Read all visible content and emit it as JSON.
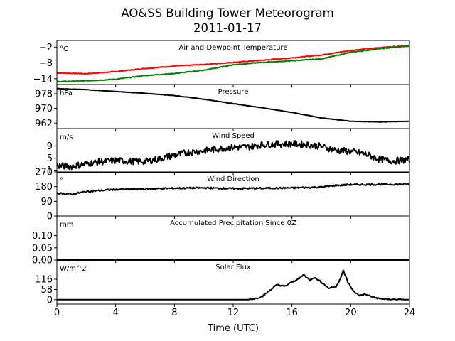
{
  "figure": {
    "title": "AO&SS Building Tower Meteorogram",
    "subtitle": "2011-01-17",
    "xlabel": "Time (UTC)"
  },
  "chart_data": {
    "type": "line",
    "x_range": [
      0,
      24
    ],
    "x_ticks": [
      0,
      4,
      8,
      12,
      16,
      20,
      24
    ],
    "x_tick_labels": [
      "0",
      "4",
      "8",
      "12",
      "16",
      "20",
      "24"
    ],
    "grid": false,
    "panels": [
      {
        "key": "temp",
        "title": "Air and Dewpoint Temperature",
        "unit": "°C",
        "ylim": [
          -16.2,
          0.5
        ],
        "y_ticks": [
          -2,
          -8,
          -14
        ],
        "y_tick_labels": [
          "−2",
          "−8",
          "−14"
        ],
        "series": [
          {
            "color": "#ff0000",
            "noise": 0.15,
            "points": [
              [
                0,
                -11.8
              ],
              [
                2,
                -12.1
              ],
              [
                4,
                -11.3
              ],
              [
                6,
                -10.1
              ],
              [
                8,
                -9.2
              ],
              [
                10,
                -8.6
              ],
              [
                12,
                -7.8
              ],
              [
                14,
                -7.0
              ],
              [
                16,
                -6.1
              ],
              [
                18,
                -5.0
              ],
              [
                20,
                -3.3
              ],
              [
                22,
                -2.2
              ],
              [
                24,
                -1.4
              ]
            ]
          },
          {
            "color": "#008000",
            "noise": 0.15,
            "points": [
              [
                0,
                -15.1
              ],
              [
                2,
                -14.8
              ],
              [
                4,
                -14.2
              ],
              [
                6,
                -12.8
              ],
              [
                8,
                -12.0
              ],
              [
                10,
                -10.8
              ],
              [
                12,
                -8.7
              ],
              [
                14,
                -7.8
              ],
              [
                16,
                -7.2
              ],
              [
                18,
                -6.5
              ],
              [
                20,
                -4.0
              ],
              [
                22,
                -2.6
              ],
              [
                24,
                -1.6
              ]
            ]
          }
        ]
      },
      {
        "key": "pressure",
        "title": "Pressure",
        "unit": "hPa",
        "ylim": [
          959,
          983
        ],
        "y_ticks": [
          978,
          970,
          962
        ],
        "y_tick_labels": [
          "978",
          "970",
          "962"
        ],
        "series": [
          {
            "color": "#000000",
            "noise": 0.1,
            "points": [
              [
                0,
                980.8
              ],
              [
                2,
                980.2
              ],
              [
                4,
                979.2
              ],
              [
                6,
                978.2
              ],
              [
                8,
                977.0
              ],
              [
                10,
                975.0
              ],
              [
                11,
                973.8
              ],
              [
                12,
                972.6
              ],
              [
                14,
                970.3
              ],
              [
                16,
                967.8
              ],
              [
                18,
                964.8
              ],
              [
                20,
                963.0
              ],
              [
                22,
                962.6
              ],
              [
                24,
                963.0
              ]
            ]
          }
        ]
      },
      {
        "key": "wind_speed",
        "title": "Wind Speed",
        "unit": "m/s",
        "ylim": [
          0.2,
          14.8
        ],
        "y_ticks": [
          9,
          5,
          1
        ],
        "y_tick_labels": [
          "9",
          "5",
          "1"
        ],
        "series": [
          {
            "color": "#000000",
            "noise": 1.1,
            "points": [
              [
                0,
                2.5
              ],
              [
                1,
                2.3
              ],
              [
                2,
                3.2
              ],
              [
                3,
                3.8
              ],
              [
                4,
                4.2
              ],
              [
                5,
                4.0
              ],
              [
                6,
                3.9
              ],
              [
                7,
                4.8
              ],
              [
                8,
                6.0
              ],
              [
                9,
                7.0
              ],
              [
                10,
                7.4
              ],
              [
                11,
                8.1
              ],
              [
                12,
                8.6
              ],
              [
                13,
                8.7
              ],
              [
                14,
                9.5
              ],
              [
                15,
                9.7
              ],
              [
                16,
                9.8
              ],
              [
                17,
                9.5
              ],
              [
                18,
                8.9
              ],
              [
                19,
                7.6
              ],
              [
                20,
                7.2
              ],
              [
                21,
                6.4
              ],
              [
                22,
                4.5
              ],
              [
                23,
                4.1
              ],
              [
                24,
                4.5
              ]
            ]
          }
        ]
      },
      {
        "key": "wind_dir",
        "title": "Wind Direction",
        "unit": "°",
        "ylim": [
          0,
          270
        ],
        "y_ticks": [
          270,
          180,
          90,
          0
        ],
        "y_tick_labels": [
          "270",
          "180",
          "90",
          "0"
        ],
        "series": [
          {
            "color": "#000000",
            "noise": 5,
            "points": [
              [
                0,
                140
              ],
              [
                1,
                133
              ],
              [
                2,
                150
              ],
              [
                4,
                163
              ],
              [
                6,
                166
              ],
              [
                8,
                170
              ],
              [
                10,
                172
              ],
              [
                12,
                168
              ],
              [
                14,
                170
              ],
              [
                16,
                172
              ],
              [
                18,
                177
              ],
              [
                19,
                187
              ],
              [
                20,
                192
              ],
              [
                22,
                193
              ],
              [
                24,
                195
              ]
            ]
          }
        ]
      },
      {
        "key": "precip",
        "title": "Accumulated Precipitation Since 0Z",
        "unit": "mm",
        "ylim": [
          0,
          0.18
        ],
        "y_ticks": [
          0.1,
          0.05,
          0.0
        ],
        "y_tick_labels": [
          "0.10",
          "0.05",
          "0.00"
        ],
        "series": [
          {
            "color": "#000000",
            "noise": 0,
            "points": [
              [
                0,
                0
              ],
              [
                24,
                0
              ]
            ]
          }
        ]
      },
      {
        "key": "solar",
        "title": "Solar Flux",
        "unit": "W/m^2",
        "ylim": [
          -25,
          225
        ],
        "y_ticks": [
          116,
          58,
          0
        ],
        "y_tick_labels": [
          "116",
          "58",
          "0"
        ],
        "series": [
          {
            "color": "#000000",
            "noise": 4,
            "points": [
              [
                0,
                0
              ],
              [
                13,
                0
              ],
              [
                13.6,
                8
              ],
              [
                14,
                20
              ],
              [
                14.6,
                60
              ],
              [
                15,
                85
              ],
              [
                15.5,
                75
              ],
              [
                16,
                100
              ],
              [
                16.5,
                120
              ],
              [
                16.8,
                142
              ],
              [
                17.2,
                110
              ],
              [
                17.5,
                127
              ],
              [
                18,
                100
              ],
              [
                18.5,
                65
              ],
              [
                19,
                75
              ],
              [
                19.3,
                120
              ],
              [
                19.5,
                165
              ],
              [
                19.8,
                100
              ],
              [
                20.2,
                45
              ],
              [
                20.6,
                25
              ],
              [
                21,
                30
              ],
              [
                21.5,
                15
              ],
              [
                22,
                5
              ],
              [
                22.5,
                2
              ],
              [
                24,
                0
              ]
            ]
          }
        ]
      }
    ]
  }
}
